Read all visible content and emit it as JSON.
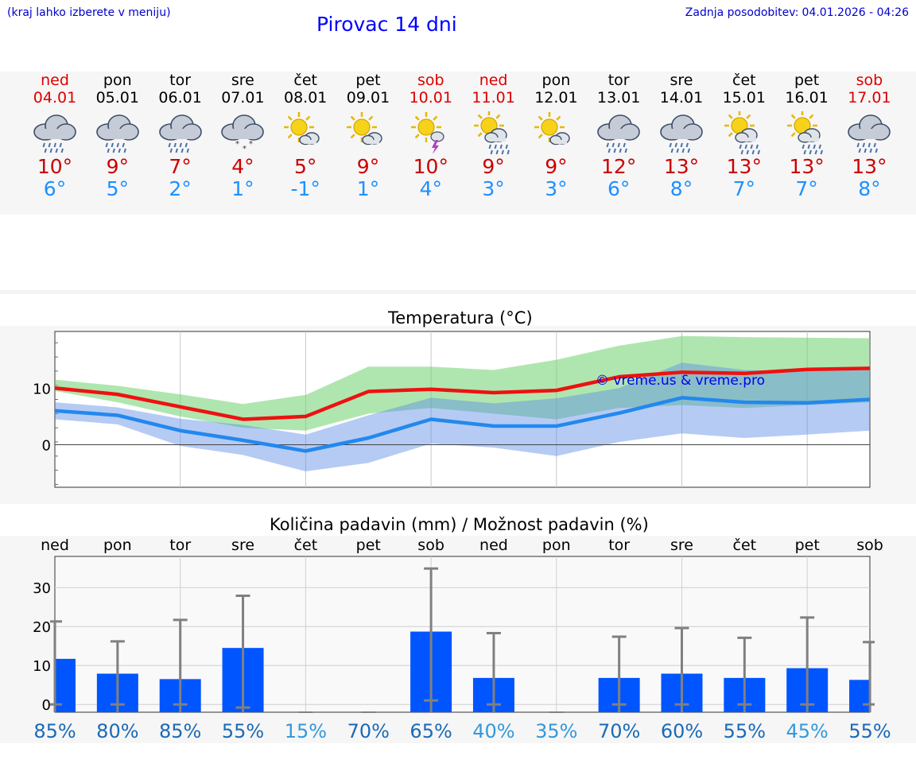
{
  "header": {
    "hint": "(kraj lahko izberete v meniju)",
    "title": "Pirovac 14 dni",
    "updated_label": "Zadnja posodobitev:",
    "updated_value": "04.01.2026 - 04:26"
  },
  "colors": {
    "max": "#cc0000",
    "min": "#1e90ff",
    "bar": "#0055ff",
    "prob_high": "#1a6ab8",
    "prob_low": "#3399dd"
  },
  "days": [
    {
      "name": "ned",
      "date": "04.01",
      "icon": "rain-cloud-icon",
      "max": "10°",
      "min": "6°",
      "weekend": true
    },
    {
      "name": "pon",
      "date": "05.01",
      "icon": "rain-cloud-icon",
      "max": "9°",
      "min": "5°",
      "weekend": false
    },
    {
      "name": "tor",
      "date": "06.01",
      "icon": "rain-cloud-icon",
      "max": "7°",
      "min": "2°",
      "weekend": false
    },
    {
      "name": "sre",
      "date": "07.01",
      "icon": "snow-cloud-icon",
      "max": "4°",
      "min": "1°",
      "weekend": false
    },
    {
      "name": "čet",
      "date": "08.01",
      "icon": "sun-cloud-icon",
      "max": "5°",
      "min": "-1°",
      "weekend": false
    },
    {
      "name": "pet",
      "date": "09.01",
      "icon": "sun-cloud-icon",
      "max": "9°",
      "min": "1°",
      "weekend": false
    },
    {
      "name": "sob",
      "date": "10.01",
      "icon": "sun-thunder-icon",
      "max": "10°",
      "min": "4°",
      "weekend": true
    },
    {
      "name": "ned",
      "date": "11.01",
      "icon": "sun-rain-icon",
      "max": "9°",
      "min": "3°",
      "weekend": true
    },
    {
      "name": "pon",
      "date": "12.01",
      "icon": "sun-cloud-icon",
      "max": "9°",
      "min": "3°",
      "weekend": false
    },
    {
      "name": "tor",
      "date": "13.01",
      "icon": "rain-cloud-icon",
      "max": "12°",
      "min": "6°",
      "weekend": false
    },
    {
      "name": "sre",
      "date": "14.01",
      "icon": "rain-cloud-icon",
      "max": "13°",
      "min": "8°",
      "weekend": false
    },
    {
      "name": "čet",
      "date": "15.01",
      "icon": "sun-rain-icon",
      "max": "13°",
      "min": "7°",
      "weekend": false
    },
    {
      "name": "pet",
      "date": "16.01",
      "icon": "sun-rain-icon",
      "max": "13°",
      "min": "7°",
      "weekend": false
    },
    {
      "name": "sob",
      "date": "17.01",
      "icon": "rain-cloud-icon",
      "max": "13°",
      "min": "8°",
      "weekend": true
    }
  ],
  "chart_data": [
    {
      "type": "line",
      "title": "Temperatura (°C)",
      "x": [
        "04.01",
        "05.01",
        "06.01",
        "07.01",
        "08.01",
        "09.01",
        "10.01",
        "11.01",
        "12.01",
        "13.01",
        "14.01",
        "15.01",
        "16.01",
        "17.01"
      ],
      "ylim": [
        -7.5,
        20
      ],
      "yticks": [
        0,
        10
      ],
      "series": [
        {
          "name": "max",
          "values": [
            10,
            8.9,
            6.7,
            4.5,
            5,
            9.4,
            9.8,
            9.2,
            9.6,
            12,
            12.8,
            12.6,
            13.3,
            13.5
          ]
        },
        {
          "name": "min",
          "values": [
            6,
            5.2,
            2.5,
            0.8,
            -1.1,
            1.2,
            4.5,
            3.3,
            3.3,
            5.6,
            8.3,
            7.5,
            7.4,
            8
          ]
        },
        {
          "name": "max_upper",
          "values": [
            11.5,
            10.4,
            8.9,
            7.2,
            8.8,
            13.8,
            13.8,
            13.2,
            15,
            17.5,
            19.2,
            19,
            18.9,
            18.8
          ]
        },
        {
          "name": "max_lower",
          "values": [
            9.5,
            7.5,
            5,
            3,
            2.5,
            5.5,
            6.5,
            5.5,
            4.5,
            6.5,
            7,
            6.5,
            7,
            7.5
          ]
        },
        {
          "name": "min_upper",
          "values": [
            7.5,
            6.6,
            4.6,
            3.5,
            1.8,
            5.2,
            8.3,
            7.3,
            8.2,
            10,
            14.5,
            13.2,
            13,
            13.2
          ]
        },
        {
          "name": "min_lower",
          "values": [
            4.5,
            3.6,
            -0.2,
            -1.8,
            -4.7,
            -3.2,
            0.2,
            -0.5,
            -2,
            0.5,
            2,
            1.2,
            1.8,
            2.5
          ]
        }
      ],
      "watermark": "© vreme.us & vreme.pro"
    },
    {
      "type": "bar",
      "title": "Količina padavin (mm) / Možnost padavin (%)",
      "categories": [
        "ned",
        "pon",
        "tor",
        "sre",
        "čet",
        "pet",
        "sob",
        "ned",
        "pon",
        "tor",
        "sre",
        "čet",
        "pet",
        "sob"
      ],
      "ylim": [
        -2,
        38
      ],
      "yticks": [
        0,
        10,
        20,
        30
      ],
      "values": [
        11.7,
        7.9,
        6.5,
        14.5,
        0,
        0,
        18.7,
        6.8,
        0,
        6.8,
        7.9,
        6.8,
        9.3,
        6.3
      ],
      "err_high": [
        21.3,
        16.2,
        21.7,
        27.9,
        0,
        0,
        34.9,
        18.3,
        0,
        17.4,
        19.6,
        17.1,
        22.3,
        16
      ],
      "err_low": [
        0,
        0,
        0,
        -0.8,
        0,
        0,
        1,
        0,
        0,
        0,
        0,
        0,
        0,
        0
      ],
      "probability": [
        "85%",
        "80%",
        "85%",
        "55%",
        "15%",
        "70%",
        "65%",
        "40%",
        "35%",
        "70%",
        "60%",
        "55%",
        "45%",
        "55%"
      ],
      "prob_tone": [
        "high",
        "high",
        "high",
        "high",
        "low",
        "high",
        "high",
        "low",
        "low",
        "high",
        "high",
        "high",
        "low",
        "high"
      ]
    }
  ]
}
